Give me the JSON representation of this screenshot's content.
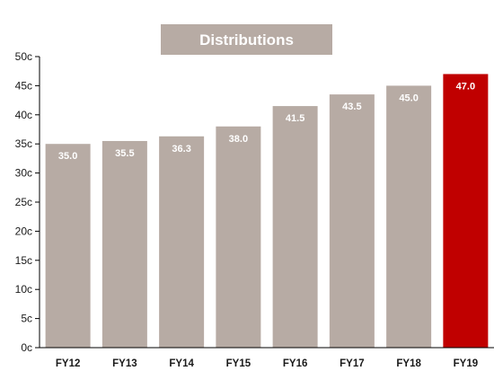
{
  "chart_data": {
    "type": "bar",
    "title": "Distributions",
    "categories": [
      "FY12",
      "FY13",
      "FY14",
      "FY15",
      "FY16",
      "FY17",
      "FY18",
      "FY19"
    ],
    "values": [
      35.0,
      35.5,
      36.3,
      38.0,
      41.5,
      43.5,
      45.0,
      47.0
    ],
    "value_labels": [
      "35.0",
      "35.5",
      "36.3",
      "38.0",
      "41.5",
      "43.5",
      "45.0",
      "47.0"
    ],
    "ylim": [
      0,
      50
    ],
    "y_ticks": [
      0,
      5,
      10,
      15,
      20,
      25,
      30,
      35,
      40,
      45,
      50
    ],
    "y_tick_labels": [
      "0c",
      "5c",
      "10c",
      "15c",
      "20c",
      "25c",
      "30c",
      "35c",
      "40c",
      "45c",
      "50c"
    ],
    "xlabel": "",
    "ylabel": "",
    "grid": false,
    "colors": {
      "bar": "#b7aba4",
      "highlight": "#c00000",
      "title_background": "#b7aba4"
    },
    "highlight_index": 7
  }
}
